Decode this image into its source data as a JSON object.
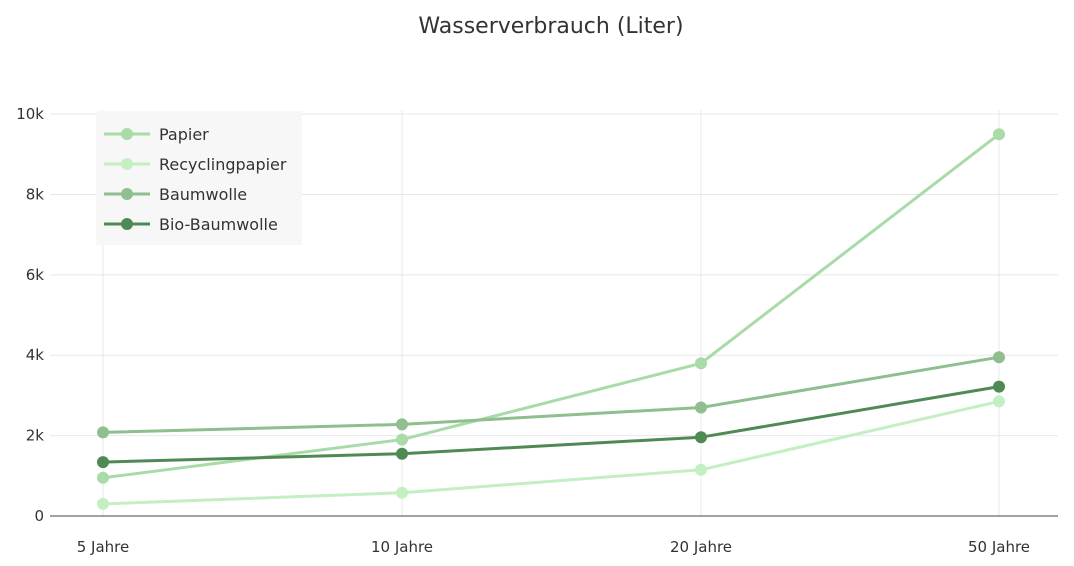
{
  "chart_data": {
    "type": "line",
    "title": "Wasserverbrauch (Liter)",
    "xlabel": "",
    "ylabel": "",
    "categories": [
      "5 Jahre",
      "10 Jahre",
      "20 Jahre",
      "50 Jahre"
    ],
    "ylim": [
      0,
      10300
    ],
    "yticks": [
      0,
      2000,
      4000,
      6000,
      8000,
      10000
    ],
    "ytick_labels": [
      "0",
      "2k",
      "4k",
      "6k",
      "8k",
      "10k"
    ],
    "grid": true,
    "legend_position": "top-left",
    "series": [
      {
        "name": "Papier",
        "color": "#a8dba8",
        "values": [
          950,
          1900,
          3800,
          9500
        ]
      },
      {
        "name": "Recyclingpapier",
        "color": "#c3efc3",
        "values": [
          300,
          580,
          1150,
          2850
        ]
      },
      {
        "name": "Baumwolle",
        "color": "#8fbe8f",
        "values": [
          2080,
          2280,
          2700,
          3950
        ]
      },
      {
        "name": "Bio-Baumwolle",
        "color": "#4f8a55",
        "values": [
          1340,
          1550,
          1960,
          3220
        ]
      }
    ]
  }
}
